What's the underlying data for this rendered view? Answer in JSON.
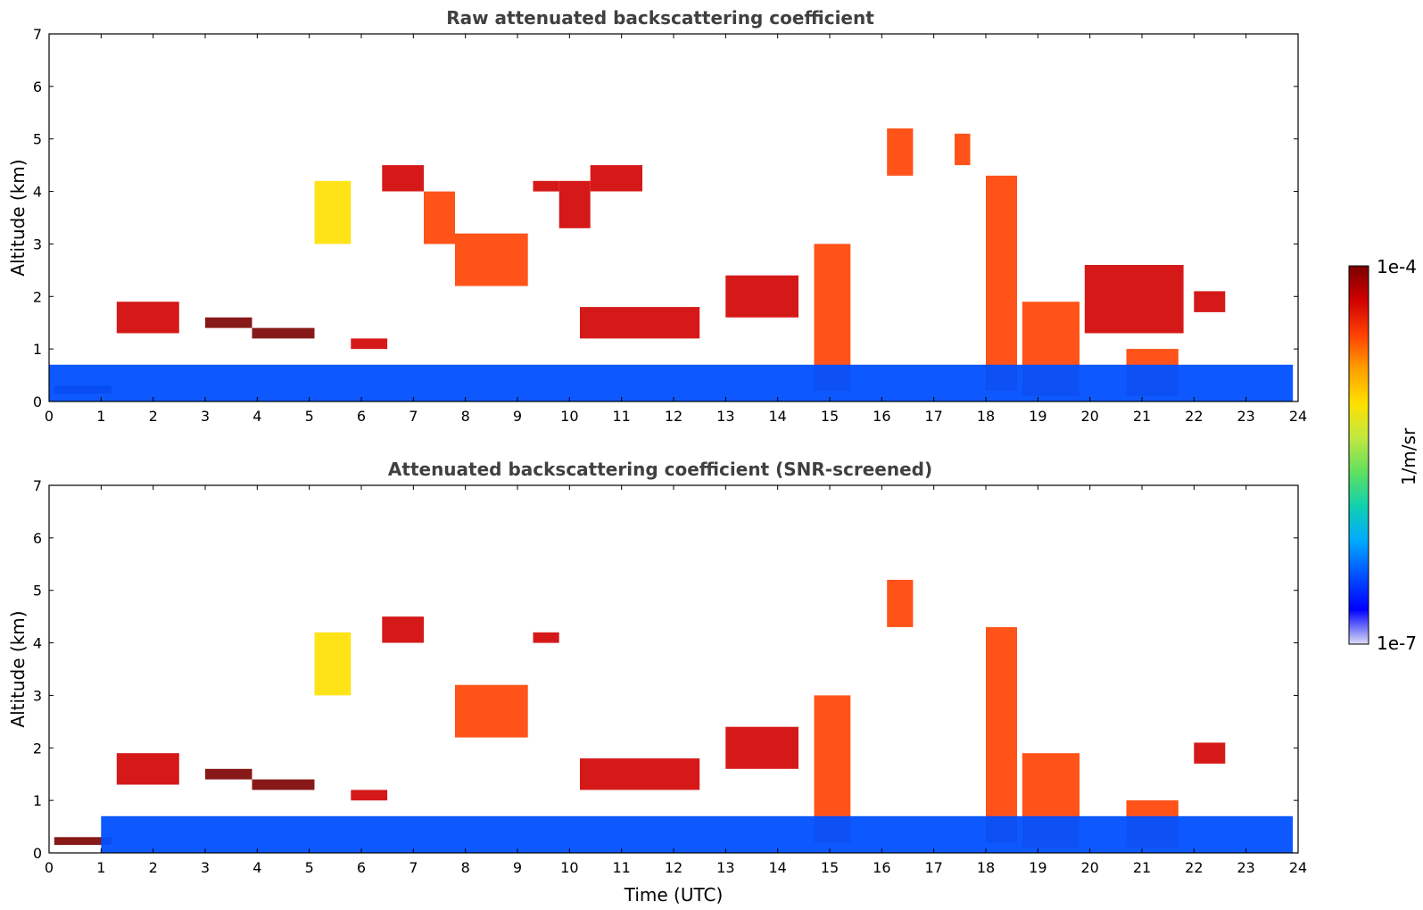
{
  "chart_data": [
    {
      "type": "heatmap",
      "title": "Raw attenuated backscattering coefficient",
      "xlabel": "",
      "ylabel": "Altitude (km)",
      "xlim": [
        0,
        24
      ],
      "ylim": [
        0,
        7
      ],
      "xticks": [
        "0",
        "1",
        "2",
        "3",
        "4",
        "5",
        "6",
        "7",
        "8",
        "9",
        "10",
        "11",
        "12",
        "13",
        "14",
        "15",
        "16",
        "17",
        "18",
        "19",
        "20",
        "21",
        "22",
        "23",
        "24"
      ],
      "yticks": [
        "0",
        "1",
        "2",
        "3",
        "4",
        "5",
        "6",
        "7"
      ],
      "features": [
        {
          "x": [
            0.1,
            1.2
          ],
          "y": [
            0.15,
            0.3
          ],
          "level": 1.0
        },
        {
          "x": [
            1.3,
            2.5
          ],
          "y": [
            1.3,
            1.9
          ],
          "level": 0.95
        },
        {
          "x": [
            3.0,
            3.9
          ],
          "y": [
            1.4,
            1.6
          ],
          "level": 1.0
        },
        {
          "x": [
            3.9,
            5.1
          ],
          "y": [
            1.2,
            1.4
          ],
          "level": 1.0
        },
        {
          "x": [
            5.8,
            6.5
          ],
          "y": [
            1.0,
            1.2
          ],
          "level": 0.95
        },
        {
          "x": [
            5.1,
            5.8
          ],
          "y": [
            3.0,
            4.2
          ],
          "level": 0.62
        },
        {
          "x": [
            6.4,
            7.2
          ],
          "y": [
            4.0,
            4.5
          ],
          "level": 0.9
        },
        {
          "x": [
            7.2,
            7.8
          ],
          "y": [
            3.0,
            4.0
          ],
          "level": 0.85
        },
        {
          "x": [
            7.8,
            9.2
          ],
          "y": [
            2.2,
            3.2
          ],
          "level": 0.78
        },
        {
          "x": [
            9.3,
            9.8
          ],
          "y": [
            4.0,
            4.2
          ],
          "level": 0.95
        },
        {
          "x": [
            9.8,
            10.4
          ],
          "y": [
            3.3,
            4.2
          ],
          "level": 0.9
        },
        {
          "x": [
            10.4,
            11.4
          ],
          "y": [
            4.0,
            4.5
          ],
          "level": 0.9
        },
        {
          "x": [
            10.2,
            12.5
          ],
          "y": [
            1.2,
            1.8
          ],
          "level": 0.92
        },
        {
          "x": [
            13.0,
            14.4
          ],
          "y": [
            1.6,
            2.4
          ],
          "level": 0.92
        },
        {
          "x": [
            14.7,
            15.4
          ],
          "y": [
            0.2,
            3.0
          ],
          "level": 0.85
        },
        {
          "x": [
            16.1,
            16.6
          ],
          "y": [
            4.3,
            5.2
          ],
          "level": 0.82
        },
        {
          "x": [
            17.4,
            17.7
          ],
          "y": [
            4.5,
            5.1
          ],
          "level": 0.82
        },
        {
          "x": [
            18.0,
            18.6
          ],
          "y": [
            0.2,
            4.3
          ],
          "level": 0.8
        },
        {
          "x": [
            18.7,
            19.8
          ],
          "y": [
            0.1,
            1.9
          ],
          "level": 0.82
        },
        {
          "x": [
            19.9,
            21.8
          ],
          "y": [
            1.3,
            2.6
          ],
          "level": 0.9
        },
        {
          "x": [
            20.7,
            21.7
          ],
          "y": [
            0.1,
            1.0
          ],
          "level": 0.85
        },
        {
          "x": [
            22.0,
            22.6
          ],
          "y": [
            1.7,
            2.1
          ],
          "level": 0.9
        },
        {
          "x": [
            0,
            23.9
          ],
          "y": [
            0,
            0.7
          ],
          "level": 0.22
        }
      ]
    },
    {
      "type": "heatmap",
      "title": "Attenuated backscattering coefficient (SNR-screened)",
      "xlabel": "Time (UTC)",
      "ylabel": "Altitude (km)",
      "xlim": [
        0,
        24
      ],
      "ylim": [
        0,
        7
      ],
      "xticks": [
        "0",
        "1",
        "2",
        "3",
        "4",
        "5",
        "6",
        "7",
        "8",
        "9",
        "10",
        "11",
        "12",
        "13",
        "14",
        "15",
        "16",
        "17",
        "18",
        "19",
        "20",
        "21",
        "22",
        "23",
        "24"
      ],
      "yticks": [
        "0",
        "1",
        "2",
        "3",
        "4",
        "5",
        "6",
        "7"
      ],
      "features": [
        {
          "x": [
            0.1,
            1.2
          ],
          "y": [
            0.15,
            0.3
          ],
          "level": 1.0
        },
        {
          "x": [
            1.3,
            2.5
          ],
          "y": [
            1.3,
            1.9
          ],
          "level": 0.95
        },
        {
          "x": [
            3.0,
            3.9
          ],
          "y": [
            1.4,
            1.6
          ],
          "level": 1.0
        },
        {
          "x": [
            3.9,
            5.1
          ],
          "y": [
            1.2,
            1.4
          ],
          "level": 1.0
        },
        {
          "x": [
            5.8,
            6.5
          ],
          "y": [
            1.0,
            1.2
          ],
          "level": 0.95
        },
        {
          "x": [
            5.1,
            5.8
          ],
          "y": [
            3.0,
            4.2
          ],
          "level": 0.62
        },
        {
          "x": [
            6.4,
            7.2
          ],
          "y": [
            4.0,
            4.5
          ],
          "level": 0.9
        },
        {
          "x": [
            7.8,
            9.2
          ],
          "y": [
            2.2,
            3.2
          ],
          "level": 0.78
        },
        {
          "x": [
            9.3,
            9.8
          ],
          "y": [
            4.0,
            4.2
          ],
          "level": 0.95
        },
        {
          "x": [
            10.2,
            12.5
          ],
          "y": [
            1.2,
            1.8
          ],
          "level": 0.92
        },
        {
          "x": [
            13.0,
            14.4
          ],
          "y": [
            1.6,
            2.4
          ],
          "level": 0.92
        },
        {
          "x": [
            14.7,
            15.4
          ],
          "y": [
            0.2,
            3.0
          ],
          "level": 0.85
        },
        {
          "x": [
            16.1,
            16.6
          ],
          "y": [
            4.3,
            5.2
          ],
          "level": 0.82
        },
        {
          "x": [
            18.0,
            18.6
          ],
          "y": [
            0.2,
            4.3
          ],
          "level": 0.8
        },
        {
          "x": [
            18.7,
            19.8
          ],
          "y": [
            0.1,
            1.9
          ],
          "level": 0.82
        },
        {
          "x": [
            20.7,
            21.7
          ],
          "y": [
            0.1,
            1.0
          ],
          "level": 0.85
        },
        {
          "x": [
            22.0,
            22.6
          ],
          "y": [
            1.7,
            2.1
          ],
          "level": 0.9
        },
        {
          "x": [
            1.0,
            23.9
          ],
          "y": [
            0,
            0.7
          ],
          "level": 0.2
        }
      ]
    }
  ],
  "colorbar": {
    "max_label": "1e-4",
    "min_label": "1e-7",
    "unit_label": "1/m/sr",
    "colors": [
      "#dcdcf5",
      "#0000ff",
      "#0050ff",
      "#00aaff",
      "#10d0b0",
      "#60e060",
      "#c0e840",
      "#ffe000",
      "#ffa000",
      "#ff4000",
      "#d00000",
      "#7a0000"
    ]
  }
}
